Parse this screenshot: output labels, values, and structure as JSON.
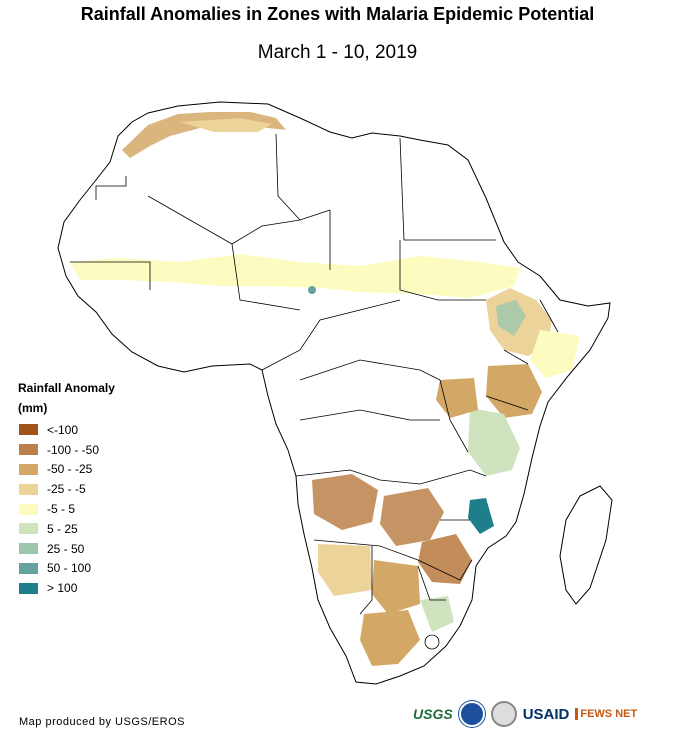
{
  "title": "Rainfall Anomalies in Zones with Malaria Epidemic Potential",
  "subtitle": "March 1 - 10, 2019",
  "legend": {
    "title": "Rainfall Anomaly",
    "units": "(mm)",
    "items": [
      {
        "label": "<-100",
        "color": "#a0541c"
      },
      {
        "label": "-100 - -50",
        "color": "#bb8049"
      },
      {
        "label": "-50 - -25",
        "color": "#d3a866"
      },
      {
        "label": "-25 - -5",
        "color": "#ebd39a"
      },
      {
        "label": "-5 - 5",
        "color": "#fdfcc0"
      },
      {
        "label": "5 - 25",
        "color": "#cfe3bf"
      },
      {
        "label": "25 - 50",
        "color": "#9cc7ae"
      },
      {
        "label": "50 - 100",
        "color": "#64a3a0"
      },
      {
        "label": "> 100",
        "color": "#1f7e8c"
      }
    ]
  },
  "credit": "Map produced by USGS/EROS",
  "logos": {
    "usgs": "USGS",
    "noaa": "noaa-seal-icon",
    "seal": "usaid-seal-icon",
    "usaid": "USAID",
    "fews": "FEWS NET"
  }
}
